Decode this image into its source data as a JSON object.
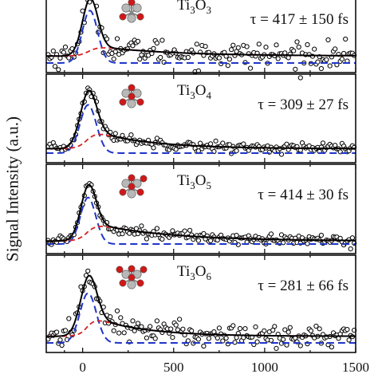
{
  "figure": {
    "ylabel": "Signal Intensity (a.u.)",
    "xticks": [
      "0",
      "500",
      "1000",
      "1500"
    ]
  },
  "colors": {
    "data": "#000000",
    "total_fit": "#000000",
    "fast_component": "#1f35c8",
    "slow_component": "#d62020",
    "titanium": "#b8b8b8",
    "oxygen": "#d01818"
  },
  "chart_data": [
    {
      "type": "scatter",
      "species_base": "Ti",
      "sub1": "3",
      "species_o": "O",
      "sub2": "3",
      "tau_label": "τ = 417 ± 150 fs",
      "xlim": [
        -200,
        1500
      ],
      "xticks": [
        0,
        500,
        1000,
        1500
      ],
      "lifetime_fs": 417,
      "peak_fs": 40,
      "fast_width_fs": 42,
      "fast_amplitude": 0.9,
      "slow_rise_fs": 80,
      "slow_amplitude": 0.18,
      "baseline": 0.12,
      "noise": 0.11,
      "series": [
        {
          "name": "",
          "style": "open-circles",
          "color": "#000000"
        },
        {
          "name": "",
          "style": "solid",
          "color": "#000000"
        },
        {
          "name": "",
          "style": "dashed",
          "color": "#1f35c8"
        },
        {
          "name": "",
          "style": "dashed",
          "color": "#d62020"
        }
      ]
    },
    {
      "type": "scatter",
      "species_base": "Ti",
      "sub1": "3",
      "species_o": "O",
      "sub2": "4",
      "tau_label": "τ = 309 ± 27 fs",
      "xlim": [
        -200,
        1500
      ],
      "xticks": [
        0,
        500,
        1000,
        1500
      ],
      "lifetime_fs": 309,
      "peak_fs": 30,
      "fast_width_fs": 45,
      "fast_amplitude": 0.65,
      "slow_rise_fs": 80,
      "slow_amplitude": 0.26,
      "baseline": 0.06,
      "noise": 0.035,
      "series": [
        {
          "name": "",
          "style": "open-circles",
          "color": "#000000"
        },
        {
          "name": "",
          "style": "solid",
          "color": "#000000"
        },
        {
          "name": "",
          "style": "dashed",
          "color": "#1f35c8"
        },
        {
          "name": "",
          "style": "dashed",
          "color": "#d62020"
        }
      ]
    },
    {
      "type": "scatter",
      "species_base": "Ti",
      "sub1": "3",
      "species_o": "O",
      "sub2": "5",
      "tau_label": "τ = 414 ± 30 fs",
      "xlim": [
        -200,
        1500
      ],
      "xticks": [
        0,
        500,
        1000,
        1500
      ],
      "lifetime_fs": 414,
      "peak_fs": 30,
      "fast_width_fs": 42,
      "fast_amplitude": 0.62,
      "slow_rise_fs": 80,
      "slow_amplitude": 0.25,
      "baseline": 0.04,
      "noise": 0.035,
      "series": [
        {
          "name": "",
          "style": "open-circles",
          "color": "#000000"
        },
        {
          "name": "",
          "style": "solid",
          "color": "#000000"
        },
        {
          "name": "",
          "style": "dashed",
          "color": "#1f35c8"
        },
        {
          "name": "",
          "style": "dashed",
          "color": "#d62020"
        }
      ]
    },
    {
      "type": "scatter",
      "species_base": "Ti",
      "sub1": "3",
      "species_o": "O",
      "sub2": "6",
      "tau_label": "τ = 281 ± 66 fs",
      "xlim": [
        -200,
        1500
      ],
      "xticks": [
        0,
        500,
        1000,
        1500
      ],
      "lifetime_fs": 281,
      "peak_fs": 30,
      "fast_width_fs": 45,
      "fast_amplitude": 0.6,
      "slow_rise_fs": 70,
      "slow_amplitude": 0.25,
      "baseline": 0.08,
      "noise": 0.07,
      "series": [
        {
          "name": "",
          "style": "open-circles",
          "color": "#000000"
        },
        {
          "name": "",
          "style": "solid",
          "color": "#000000"
        },
        {
          "name": "",
          "style": "dashed",
          "color": "#1f35c8"
        },
        {
          "name": "",
          "style": "dashed",
          "color": "#d62020"
        }
      ]
    }
  ]
}
